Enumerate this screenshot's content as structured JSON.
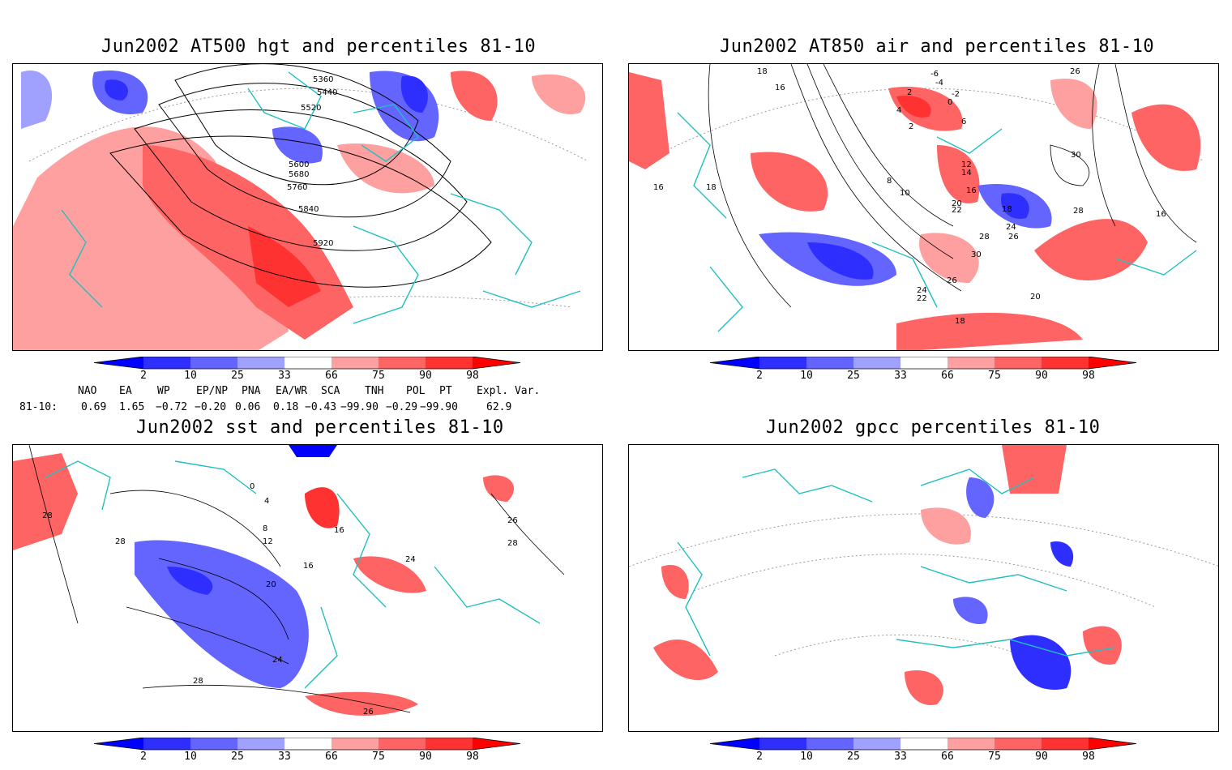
{
  "panels": [
    {
      "id": "p1",
      "title": "Jun2002 AT500 hgt and percentiles 81-10",
      "contour_labels": [
        "5360",
        "5440",
        "5520",
        "5600",
        "5680",
        "5760",
        "5840",
        "5920"
      ]
    },
    {
      "id": "p2",
      "title": "Jun2002 AT850 air and percentiles 81-10",
      "contour_labels": [
        "18",
        "16",
        "16",
        "18",
        "-6",
        "-4",
        "-2",
        "0",
        "2",
        "4",
        "6",
        "2",
        "8",
        "10",
        "12",
        "14",
        "16",
        "20",
        "22",
        "18",
        "24",
        "26",
        "28",
        "30",
        "26",
        "24",
        "22",
        "20",
        "18",
        "26",
        "28",
        "30",
        "16"
      ]
    },
    {
      "id": "p3",
      "title": "Jun2002 sst and percentiles 81-10",
      "contour_labels": [
        "28",
        "28",
        "16",
        "20",
        "24",
        "28",
        "26",
        "24",
        "12",
        "8",
        "4",
        "0",
        "16",
        "26",
        "28"
      ]
    },
    {
      "id": "p4",
      "title": "Jun2002 gpcc percentiles 81-10",
      "contour_labels": []
    }
  ],
  "colorbar": {
    "ticks": [
      "2",
      "10",
      "25",
      "33",
      "66",
      "75",
      "90",
      "98"
    ],
    "colors": {
      "blue_extreme": "#0000ff",
      "blue_dark": "#2e2eff",
      "blue_mid": "#6464ff",
      "blue_light": "#a0a0ff",
      "white": "#ffffff",
      "red_light": "#ffa0a0",
      "red_mid": "#ff6464",
      "red_dark": "#ff3232",
      "red_extreme": "#ff0000"
    }
  },
  "indices": {
    "headers": [
      "NAO",
      "EA",
      "WP",
      "EP/NP",
      "PNA",
      "EA/WR",
      "SCA",
      "TNH",
      "POL",
      "PT",
      "Expl. Var."
    ],
    "row_label": "81-10:",
    "values": [
      "0.69",
      "1.65",
      "−0.72",
      "−0.20",
      "0.06",
      "0.18",
      "−0.43",
      "−99.90",
      "−0.29",
      "−99.90",
      "62.9"
    ]
  },
  "map_colors": {
    "coast": "#20c0c0",
    "contour": "#000000",
    "grid": "#999999"
  }
}
